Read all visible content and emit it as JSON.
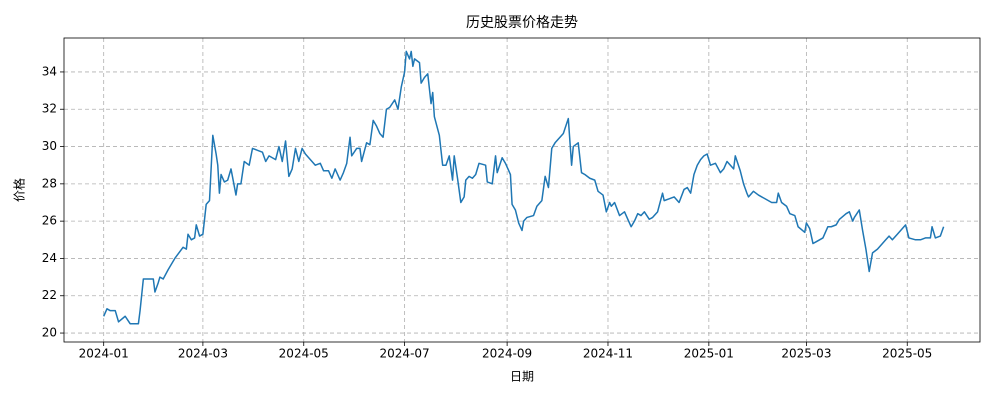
{
  "chart_data": {
    "type": "line",
    "title": "历史股票价格走势",
    "x_label": "日期",
    "y_label": "价格",
    "x": [
      0,
      2,
      4,
      7,
      9,
      13,
      16,
      21,
      22,
      24,
      28,
      30,
      31,
      33,
      34,
      36,
      39,
      43,
      48,
      50,
      51,
      53,
      55,
      56,
      58,
      60,
      62,
      64,
      66,
      68,
      69,
      70,
      71,
      73,
      75,
      77,
      80,
      81,
      83,
      85,
      88,
      90,
      93,
      96,
      98,
      100,
      104,
      106,
      108,
      110,
      112,
      114,
      116,
      118,
      120,
      122,
      126,
      128,
      131,
      133,
      136,
      138,
      140,
      143,
      145,
      147,
      149,
      150,
      153,
      155,
      156,
      159,
      161,
      163,
      165,
      167,
      169,
      171,
      173,
      176,
      178,
      180,
      182,
      183,
      185,
      186,
      187,
      188,
      191,
      192,
      194,
      196,
      198,
      199,
      200,
      203,
      205,
      207,
      209,
      211,
      212,
      214,
      216,
      218,
      219,
      221,
      223,
      225,
      227,
      231,
      232,
      235,
      237,
      238,
      241,
      243,
      246,
      247,
      249,
      251,
      253,
      254,
      256,
      260,
      262,
      265,
      267,
      269,
      271,
      273,
      278,
      281,
      283,
      284,
      287,
      289,
      291,
      294,
      297,
      299,
      302,
      304,
      306,
      307,
      309,
      312,
      315,
      317,
      319,
      321,
      323,
      325,
      327,
      330,
      332,
      335,
      338,
      339,
      342,
      345,
      348,
      351,
      353,
      355,
      357,
      359,
      361,
      363,
      365,
      367,
      370,
      373,
      375,
      377,
      381,
      382,
      385,
      387,
      389,
      390,
      393,
      396,
      400,
      404,
      407,
      408,
      410,
      413,
      415,
      418,
      420,
      424,
      425,
      427,
      429,
      431,
      435,
      438,
      440,
      443,
      445,
      449,
      451,
      453,
      454,
      457,
      459,
      461,
      463,
      465,
      468,
      471,
      473,
      475,
      477,
      480,
      483,
      485,
      487,
      491,
      494,
      497,
      500,
      501,
      503,
      506,
      508
    ],
    "series": [
      {
        "name": "价格",
        "color": "#1f77b4",
        "values": [
          20.9,
          21.3,
          21.2,
          21.2,
          20.6,
          20.9,
          20.5,
          20.5,
          21.2,
          22.9,
          22.9,
          22.9,
          22.2,
          22.7,
          23.0,
          22.9,
          23.4,
          24.0,
          24.6,
          24.5,
          25.3,
          25.0,
          25.1,
          25.8,
          25.2,
          25.3,
          26.9,
          27.1,
          30.6,
          29.6,
          29.0,
          27.5,
          28.5,
          28.1,
          28.2,
          28.8,
          27.4,
          28.0,
          28.0,
          29.2,
          29.0,
          29.9,
          29.8,
          29.7,
          29.2,
          29.5,
          29.3,
          30.0,
          29.2,
          30.3,
          28.4,
          28.8,
          29.9,
          29.2,
          29.9,
          29.6,
          29.2,
          29.0,
          29.1,
          28.7,
          28.7,
          28.3,
          28.8,
          28.2,
          28.6,
          29.1,
          30.5,
          29.5,
          29.9,
          29.9,
          29.2,
          30.2,
          30.1,
          31.4,
          31.1,
          30.7,
          30.5,
          32.0,
          32.1,
          32.5,
          32.0,
          33.2,
          34.0,
          35.1,
          34.7,
          35.1,
          34.3,
          34.7,
          34.5,
          33.4,
          33.7,
          33.9,
          32.3,
          32.9,
          31.6,
          30.6,
          29.0,
          29.0,
          29.5,
          28.2,
          29.5,
          28.3,
          27.0,
          27.3,
          28.2,
          28.4,
          28.3,
          28.5,
          29.1,
          29.0,
          28.1,
          28.0,
          29.5,
          28.6,
          29.4,
          29.1,
          28.5,
          26.9,
          26.6,
          25.9,
          25.5,
          26.0,
          26.2,
          26.3,
          26.8,
          27.1,
          28.4,
          27.8,
          29.9,
          30.2,
          30.7,
          31.5,
          29.0,
          30.0,
          30.2,
          28.6,
          28.5,
          28.3,
          28.2,
          27.6,
          27.4,
          26.5,
          27.0,
          26.8,
          27.0,
          26.3,
          26.5,
          26.1,
          25.7,
          26.0,
          26.4,
          26.3,
          26.5,
          26.1,
          26.2,
          26.5,
          27.5,
          27.1,
          27.2,
          27.3,
          27.0,
          27.7,
          27.8,
          27.5,
          28.5,
          29.0,
          29.3,
          29.5,
          29.6,
          29.0,
          29.1,
          28.6,
          28.8,
          29.2,
          28.8,
          29.5,
          28.7,
          28.0,
          27.5,
          27.3,
          27.6,
          27.4,
          27.2,
          27.0,
          27.0,
          27.5,
          27.0,
          26.8,
          26.4,
          26.3,
          25.7,
          25.4,
          25.9,
          25.6,
          24.8,
          24.9,
          25.1,
          25.7,
          25.7,
          25.8,
          26.1,
          26.4,
          26.5,
          26.0,
          26.2,
          26.6,
          25.5,
          24.5,
          23.3,
          24.3,
          24.5,
          24.8,
          25.0,
          25.2,
          25.0,
          25.3,
          25.6,
          25.8,
          25.1,
          25.0,
          25.0,
          25.1,
          25.1,
          25.7,
          25.1,
          25.2,
          25.7
        ]
      }
    ],
    "xlim": [
      -24,
      530
    ],
    "xticks": [
      {
        "value": 0,
        "label": "2024-01"
      },
      {
        "value": 60,
        "label": "2024-03"
      },
      {
        "value": 121,
        "label": "2024-05"
      },
      {
        "value": 182,
        "label": "2024-07"
      },
      {
        "value": 244,
        "label": "2024-09"
      },
      {
        "value": 305,
        "label": "2024-11"
      },
      {
        "value": 366,
        "label": "2025-01"
      },
      {
        "value": 425,
        "label": "2025-03"
      },
      {
        "value": 486,
        "label": "2025-05"
      }
    ],
    "ylim": [
      19.52,
      35.82
    ],
    "yticks": [
      20,
      22,
      24,
      26,
      28,
      30,
      32,
      34
    ],
    "grid": true
  }
}
